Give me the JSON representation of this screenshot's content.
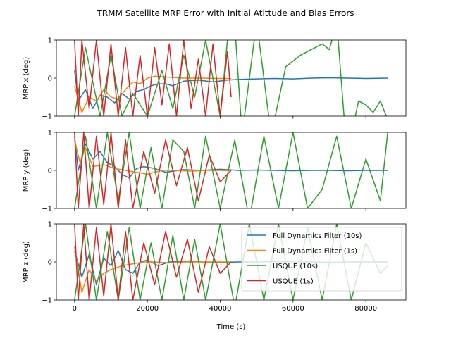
{
  "chart_data": {
    "type": "line",
    "title": "TRMM Satellite MRP Error with Initial Atittude and Bias Errors",
    "xlabel": "Time (s)",
    "xlim": [
      -5000,
      91000
    ],
    "xticks": [
      0,
      20000,
      40000,
      60000,
      80000
    ],
    "xtick_labels": [
      "0",
      "20000",
      "40000",
      "60000",
      "80000"
    ],
    "ylim": [
      -1,
      1
    ],
    "yticks": [
      -1,
      0,
      1
    ],
    "ytick_labels": [
      "−1",
      "0",
      "1"
    ],
    "legend": {
      "placement": "lower-right of bottom panel"
    },
    "series_styles": [
      {
        "name": "Full Dynamics Filter (10s)",
        "color": "#1f77b4"
      },
      {
        "name": "Full Dynamics Filter (1s)",
        "color": "#ff7f0e"
      },
      {
        "name": "USQUE (10s)",
        "color": "#2ca02c"
      },
      {
        "name": "USQUE (1s)",
        "color": "#d62728"
      }
    ],
    "panels": [
      {
        "ylabel": "MRP x (deg)",
        "series": [
          {
            "name": "Full Dynamics Filter (10s)",
            "x": [
              0,
              1000,
              3000,
              5000,
              7000,
              9000,
              11000,
              13000,
              15000,
              17000,
              19000,
              21000,
              23000,
              25000,
              27000,
              30000,
              34000,
              38000,
              42000,
              46000,
              50000,
              55000,
              60000,
              65000,
              70000,
              75000,
              80000,
              86000
            ],
            "y": [
              0.2,
              -0.6,
              -0.3,
              -0.8,
              -0.45,
              -0.5,
              -0.65,
              -0.4,
              -0.55,
              -0.35,
              -0.3,
              -0.2,
              -0.15,
              -0.15,
              -0.2,
              -0.08,
              -0.05,
              -0.1,
              -0.05,
              -0.03,
              -0.02,
              -0.01,
              -0.02,
              0.0,
              0.01,
              0.0,
              -0.01,
              0.0
            ]
          },
          {
            "name": "Full Dynamics Filter (1s)",
            "x": [
              0,
              2000,
              4000,
              6000,
              8000,
              10000,
              12000,
              14000,
              16000,
              18000,
              20000,
              22000,
              25000,
              30000,
              35000,
              40000,
              43000
            ],
            "y": [
              -0.2,
              -0.9,
              -0.5,
              -0.6,
              -0.3,
              -0.5,
              -0.55,
              -0.3,
              -0.1,
              -0.15,
              0.0,
              0.05,
              0.03,
              0.0,
              0.0,
              -0.01,
              -0.01
            ]
          },
          {
            "name": "USQUE (10s)",
            "x": [
              0,
              3000,
              7000,
              10000,
              13000,
              16000,
              20000,
              24000,
              27000,
              30000,
              33000,
              36000,
              40000,
              42000,
              44000,
              46000,
              50000,
              54000,
              58000,
              62000,
              66000,
              68000,
              70000,
              72000,
              74000,
              76000,
              78000,
              80000,
              82000,
              84000,
              86000
            ],
            "y": [
              -1,
              0.8,
              -1,
              0.6,
              -1,
              -0.4,
              -1,
              0.2,
              -0.8,
              0.6,
              -0.5,
              1,
              -1,
              1,
              1.4,
              -1.5,
              1.5,
              -1.5,
              0.3,
              0.6,
              0.8,
              0.9,
              0.75,
              1.5,
              -1.0,
              -1.5,
              -0.6,
              -0.7,
              -0.9,
              -0.6,
              -1.1
            ]
          },
          {
            "name": "USQUE (1s)",
            "x": [
              0,
              1000,
              2000,
              4000,
              6000,
              8000,
              10000,
              12000,
              14000,
              16000,
              18000,
              20000,
              22000,
              24000,
              26000,
              28000,
              30000,
              32000,
              34000,
              36000,
              38000,
              40000,
              42000,
              43000
            ],
            "y": [
              1,
              -1,
              1,
              -0.8,
              1,
              -1,
              0.9,
              -1,
              0.8,
              -1,
              0.6,
              -1,
              0.8,
              -0.7,
              0.9,
              -1,
              1,
              -0.8,
              0.5,
              -1,
              0.9,
              -1,
              0.7,
              -0.5
            ]
          }
        ]
      },
      {
        "ylabel": "MRP y (deg)",
        "series": [
          {
            "name": "Full Dynamics Filter (10s)",
            "x": [
              0,
              1000,
              3000,
              5000,
              7000,
              9000,
              11000,
              13000,
              15000,
              17000,
              19000,
              22000,
              25000,
              30000,
              35000,
              40000,
              45000,
              50000,
              55000,
              60000,
              65000,
              70000,
              75000,
              80000,
              86000
            ],
            "y": [
              0.9,
              0.0,
              0.7,
              0.3,
              0.5,
              0.2,
              0.1,
              -0.1,
              -0.2,
              0.05,
              0.1,
              0.05,
              -0.05,
              0.02,
              0.0,
              0.03,
              0.0,
              0.01,
              0.0,
              -0.01,
              0.0,
              0.0,
              -0.01,
              0.0,
              0.0
            ]
          },
          {
            "name": "Full Dynamics Filter (1s)",
            "x": [
              0,
              1500,
              3000,
              5000,
              8000,
              11000,
              14000,
              17000,
              20000,
              24000,
              28000,
              32000,
              36000,
              40000,
              43000
            ],
            "y": [
              0.8,
              0.2,
              0.6,
              0.1,
              0.15,
              0.05,
              0.0,
              -0.05,
              -0.1,
              0.0,
              0.0,
              -0.02,
              0.0,
              0.0,
              -0.01
            ]
          },
          {
            "name": "USQUE (10s)",
            "x": [
              0,
              3000,
              6000,
              9000,
              12000,
              15000,
              18000,
              21000,
              24000,
              27000,
              30000,
              33000,
              36000,
              40000,
              44000,
              48000,
              52000,
              56000,
              60000,
              64000,
              68000,
              72000,
              76000,
              80000,
              84000,
              86000
            ],
            "y": [
              -1,
              0.9,
              -1,
              1,
              -0.8,
              1,
              -1,
              0.6,
              -1,
              0.8,
              0.5,
              -1,
              0.9,
              -1,
              0.8,
              -1.3,
              0.9,
              -1,
              1,
              -1,
              -0.5,
              0.9,
              -1,
              0.3,
              -0.8,
              1
            ]
          },
          {
            "name": "USQUE (1s)",
            "x": [
              0,
              1000,
              2500,
              4000,
              6000,
              8000,
              10000,
              12000,
              14000,
              16000,
              19000,
              22000,
              25000,
              28000,
              31000,
              34000,
              37000,
              40000,
              43000
            ],
            "y": [
              1,
              -1,
              1,
              -1,
              0.9,
              -0.9,
              1,
              -1,
              0.8,
              -1,
              0.5,
              -0.6,
              0.8,
              -0.4,
              0.6,
              -0.8,
              0.4,
              -0.3,
              0.0
            ]
          }
        ]
      },
      {
        "ylabel": "MRP z (deg)",
        "series": [
          {
            "name": "Full Dynamics Filter (10s)",
            "x": [
              0,
              2000,
              4000,
              6000,
              8000,
              10000,
              12000,
              14000,
              16000,
              18000,
              20000,
              23000,
              26000,
              30000,
              35000,
              40000,
              45000,
              50000,
              55000,
              60000,
              65000,
              70000,
              75000,
              80000,
              86000
            ],
            "y": [
              0.3,
              -0.4,
              0.2,
              -0.6,
              0.1,
              -0.1,
              0.3,
              -0.2,
              -0.3,
              0.0,
              0.05,
              -0.1,
              0.0,
              0.02,
              0.0,
              -0.01,
              0.0,
              0.0,
              0.01,
              0.0,
              0.0,
              -0.01,
              0.0,
              0.0,
              0.0
            ]
          },
          {
            "name": "Full Dynamics Filter (1s)",
            "x": [
              0,
              2000,
              4000,
              6000,
              8000,
              10000,
              13000,
              16000,
              19000,
              22000,
              26000,
              30000,
              35000,
              40000,
              43000
            ],
            "y": [
              0.4,
              -0.8,
              -0.2,
              -0.5,
              -0.3,
              -0.2,
              -0.1,
              -0.05,
              0.0,
              0.0,
              -0.02,
              0.0,
              0.0,
              0.0,
              0.0
            ]
          },
          {
            "name": "USQUE (10s)",
            "x": [
              0,
              3000,
              6000,
              9000,
              12000,
              15000,
              18000,
              21000,
              24000,
              27000,
              30000,
              33000,
              36000,
              40000,
              44000,
              48000,
              52000,
              56000,
              60000,
              64000,
              68000,
              72000,
              76000,
              80000,
              84000,
              86000
            ],
            "y": [
              -1,
              1,
              -1,
              0.8,
              -1,
              0.9,
              -1,
              0.5,
              -1,
              0.7,
              -1,
              0.6,
              -1,
              1,
              -1.2,
              1,
              -1,
              1,
              -1,
              0.9,
              -1,
              1,
              -1,
              0.5,
              -0.3,
              -0.1
            ]
          },
          {
            "name": "USQUE (1s)",
            "x": [
              0,
              1000,
              2500,
              4000,
              6000,
              8000,
              10000,
              12000,
              14000,
              16000,
              19000,
              22000,
              25000,
              28000,
              31000,
              34000,
              37000,
              40000,
              43000
            ],
            "y": [
              1,
              -1,
              1,
              -1,
              0.9,
              -0.9,
              1,
              -1,
              0.8,
              -1,
              0.5,
              -0.6,
              0.8,
              -0.4,
              0.6,
              -0.8,
              0.4,
              -0.3,
              0.0
            ]
          }
        ]
      }
    ]
  }
}
